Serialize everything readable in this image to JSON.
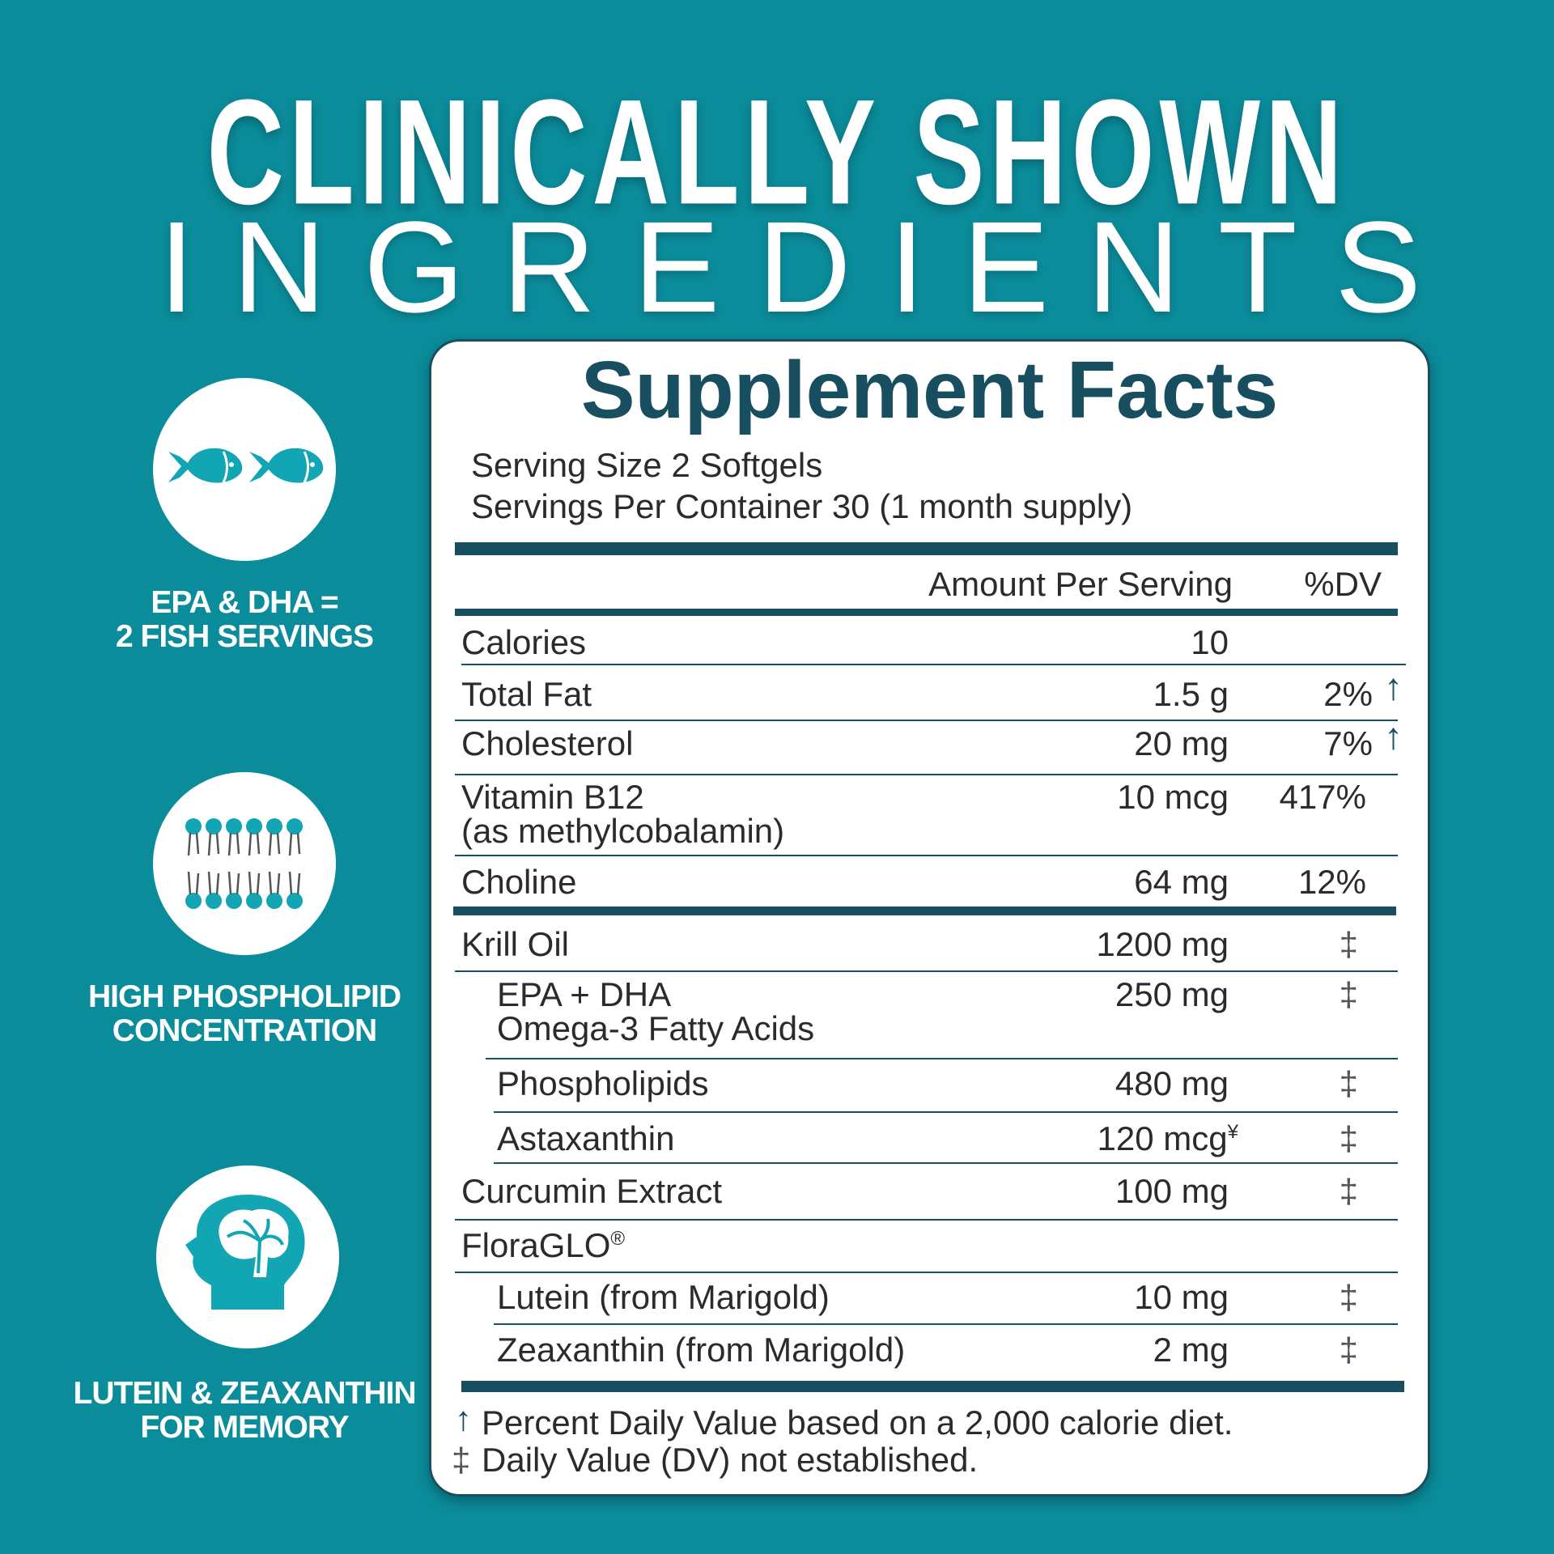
{
  "headline": {
    "line1": "CLINICALLY SHOWN",
    "line2": "INGREDIENTS"
  },
  "colors": {
    "background": "#0b8c9b",
    "icon": "#12a6b4",
    "label_dark": "#174e60"
  },
  "features": [
    {
      "icon": "fish-icon",
      "line1": "EPA & DHA =",
      "line2": "2 FISH SERVINGS"
    },
    {
      "icon": "phospholipid-icon",
      "line1": "HIGH PHOSPHOLIPID",
      "line2": "CONCENTRATION"
    },
    {
      "icon": "brain-head-icon",
      "line1": "LUTEIN & ZEAXANTHIN",
      "line2": "FOR MEMORY"
    }
  ],
  "facts": {
    "title": "Supplement Facts",
    "serving_size": "Serving Size 2 Softgels",
    "servings_per_container": "Servings Per Container 30 (1 month supply)",
    "col_amount": "Amount Per Serving",
    "col_dv": "%DV",
    "rows": [
      {
        "name": "Calories",
        "amount": "10",
        "dv": ""
      },
      {
        "name": "Total Fat",
        "amount": "1.5 g",
        "dv": "2%",
        "mark": "↑"
      },
      {
        "name": "Cholesterol",
        "amount": "20 mg",
        "dv": "7%",
        "mark": "↑"
      },
      {
        "name": "Vitamin B12",
        "name2": "(as methylcobalamin)",
        "amount": "10 mcg",
        "dv": "417%"
      },
      {
        "name": "Choline",
        "amount": "64 mg",
        "dv": "12%"
      },
      {
        "name": "Krill Oil",
        "amount": "1200 mg",
        "dv": "‡"
      },
      {
        "name": "EPA + DHA",
        "name2": "Omega-3 Fatty Acids",
        "amount": "250 mg",
        "dv": "‡",
        "indent": true
      },
      {
        "name": "Phospholipids",
        "amount": "480 mg",
        "dv": "‡",
        "indent": true
      },
      {
        "name": "Astaxanthin",
        "amount": "120 mcg",
        "amount_sup": "¥",
        "dv": "‡",
        "indent": true
      },
      {
        "name": "Curcumin Extract",
        "amount": "100 mg",
        "dv": "‡"
      },
      {
        "name": "FloraGLO",
        "name_sup": "®",
        "amount": "",
        "dv": ""
      },
      {
        "name": "Lutein (from Marigold)",
        "amount": "10 mg",
        "dv": "‡",
        "indent": true
      },
      {
        "name": "Zeaxanthin (from Marigold)",
        "amount": "2 mg",
        "dv": "‡",
        "indent": true
      }
    ],
    "footnote1_mark": "↑",
    "footnote1": "Percent Daily Value based on a 2,000 calorie diet.",
    "footnote2_mark": "‡",
    "footnote2": "Daily Value (DV) not established."
  }
}
